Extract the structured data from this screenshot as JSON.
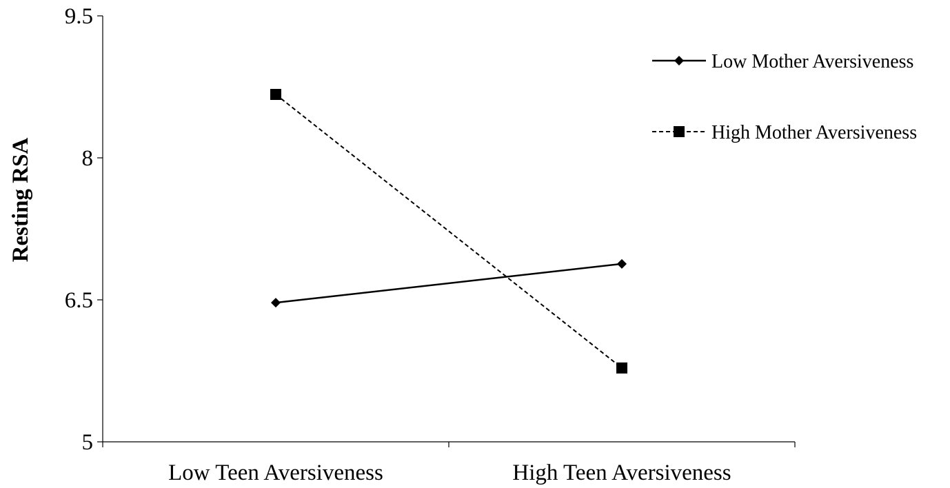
{
  "chart_data": {
    "type": "line",
    "categories": [
      "Low Teen Aversiveness",
      "High Teen Aversiveness"
    ],
    "series": [
      {
        "name": "Low Mother Aversiveness",
        "values": [
          6.47,
          6.88
        ],
        "marker": "diamond",
        "line_style": "solid",
        "color": "#000000"
      },
      {
        "name": "High Mother Aversiveness",
        "values": [
          8.67,
          5.78
        ],
        "marker": "square",
        "line_style": "dashed",
        "color": "#000000"
      }
    ],
    "title": "",
    "xlabel": "",
    "ylabel": "Resting RSA",
    "ylim": [
      5,
      9.5
    ],
    "yticks": [
      5,
      6.5,
      8,
      9.5
    ],
    "ytick_labels": [
      "5",
      "6.5",
      "8",
      "9.5"
    ],
    "grid": false,
    "legend_position": "top-right"
  }
}
